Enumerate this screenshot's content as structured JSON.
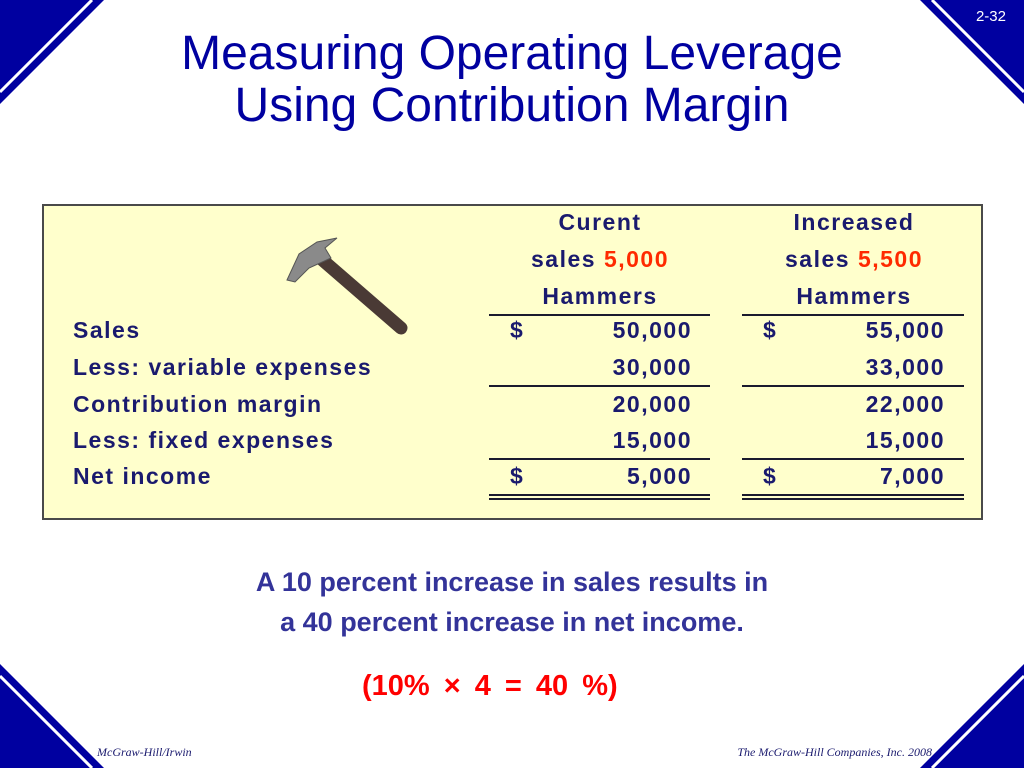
{
  "slide_number": "2-32",
  "title": [
    "Measuring Operating Leverage",
    "Using Contribution Margin"
  ],
  "table": {
    "headers": [
      {
        "line1": "Curent",
        "line2": "sales",
        "units": "5,000",
        "line3": "Hammers"
      },
      {
        "line1": "Increased",
        "line2": "sales",
        "units": "5,500",
        "line3": "Hammers"
      }
    ],
    "rows": [
      [
        "Sales",
        "$",
        "50,000",
        "$",
        "55,000"
      ],
      [
        "Less: variable expenses",
        null,
        "30,000",
        null,
        "33,000"
      ],
      [
        "Contribution margin",
        null,
        "20,000",
        null,
        "22,000"
      ],
      [
        "Less: fixed expenses",
        null,
        "15,000",
        null,
        "15,000"
      ],
      [
        "Net income",
        "$",
        "5,000",
        "$",
        "7,000"
      ]
    ]
  },
  "caption": [
    "A 10 percent increase in sales results in",
    "a 40 percent increase in net income."
  ],
  "formula": "(10%  ×  4  =  40 %)",
  "footer": {
    "left": "McGraw-Hill/Irwin",
    "right": "The McGraw-Hill Companies, Inc. 2008"
  }
}
